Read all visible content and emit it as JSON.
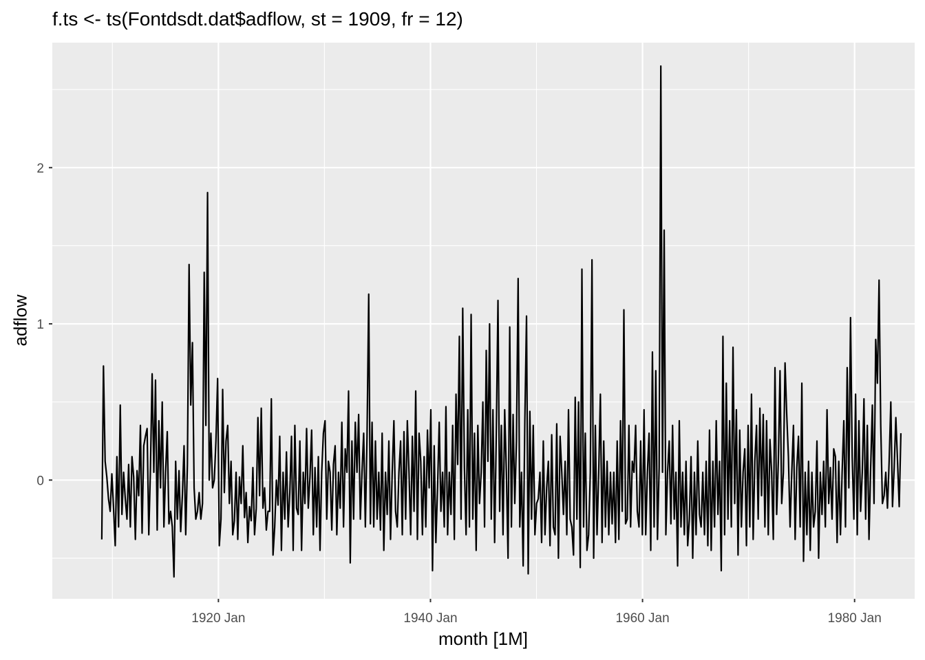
{
  "chart_data": {
    "type": "line",
    "title": "f.ts <- ts(Fontdsdt.dat$adflow, st = 1909, fr = 12)",
    "xlabel": "month [1M]",
    "ylabel": "adflow",
    "x_start": "1909-01",
    "frequency": 12,
    "x_range": [
      "1904-05",
      "1985-09"
    ],
    "ylim": [
      -0.76,
      2.8
    ],
    "x_ticks": [
      {
        "date": "1920-01",
        "label": "1920 Jan"
      },
      {
        "date": "1940-01",
        "label": "1940 Jan"
      },
      {
        "date": "1960-01",
        "label": "1960 Jan"
      },
      {
        "date": "1980-01",
        "label": "1980 Jan"
      }
    ],
    "y_ticks": [
      {
        "value": 0,
        "label": "0"
      },
      {
        "value": 1,
        "label": "1"
      },
      {
        "value": 2,
        "label": "2"
      }
    ],
    "grid": true,
    "background": "#EBEBEB",
    "grid_color": "#FFFFFF",
    "line_color": "#000000",
    "series": [
      {
        "values": [
          -0.38,
          0.73,
          0.12,
          0.02,
          -0.12,
          -0.2,
          0.04,
          -0.18,
          -0.42,
          0.15,
          -0.3,
          0.48,
          -0.22,
          0.05,
          -0.12,
          -0.25,
          0.1,
          -0.3,
          0.15,
          0.02,
          -0.38,
          0.06,
          -0.1,
          0.35,
          -0.34,
          0.22,
          0.28,
          0.33,
          -0.35,
          0.08,
          0.68,
          0.05,
          0.64,
          -0.32,
          0.38,
          -0.05,
          0.5,
          -0.3,
          0.05,
          0.31,
          -0.28,
          -0.2,
          -0.3,
          -0.62,
          0.12,
          -0.25,
          0.06,
          -0.33,
          -0.1,
          0.22,
          -0.35,
          0.1,
          1.38,
          0.48,
          0.88,
          -0.05,
          -0.25,
          -0.2,
          -0.08,
          -0.25,
          -0.15,
          1.33,
          0.35,
          1.84,
          0.0,
          0.3,
          -0.05,
          0.0,
          0.25,
          0.65,
          -0.42,
          -0.25,
          0.58,
          -0.08,
          0.25,
          0.35,
          -0.15,
          0.12,
          -0.35,
          -0.26,
          0.05,
          -0.38,
          0.02,
          -0.15,
          0.22,
          -0.24,
          -0.08,
          -0.4,
          -0.17,
          -0.26,
          0.08,
          -0.35,
          -0.18,
          0.4,
          -0.1,
          0.46,
          -0.18,
          -0.05,
          -0.32,
          -0.2,
          -0.2,
          0.52,
          -0.48,
          -0.3,
          0.0,
          -0.16,
          0.28,
          -0.45,
          0.05,
          -0.25,
          0.18,
          -0.3,
          -0.08,
          0.28,
          -0.45,
          0.35,
          -0.18,
          -0.22,
          0.25,
          -0.45,
          0.05,
          -0.15,
          0.33,
          -0.18,
          0.02,
          0.32,
          -0.35,
          0.08,
          -0.3,
          0.15,
          -0.45,
          0.05,
          0.3,
          0.38,
          -0.25,
          0.12,
          0.05,
          -0.32,
          0.1,
          0.22,
          -0.35,
          0.05,
          -0.18,
          0.37,
          -0.3,
          0.2,
          0.05,
          0.57,
          -0.53,
          0.25,
          -0.25,
          0.37,
          0.05,
          0.42,
          -0.25,
          0.05,
          0.3,
          -0.3,
          0.28,
          1.19,
          -0.28,
          0.37,
          -0.3,
          0.25,
          -0.25,
          0.05,
          -0.32,
          0.3,
          -0.45,
          0.05,
          -0.22,
          0.25,
          -0.38,
          0.05,
          0.38,
          -0.2,
          -0.3,
          0.05,
          0.25,
          -0.35,
          0.31,
          -0.25,
          0.38,
          0.05,
          -0.35,
          0.28,
          -0.2,
          0.57,
          -0.38,
          0.3,
          0.12,
          -0.35,
          0.15,
          -0.3,
          0.32,
          -0.05,
          0.45,
          -0.58,
          0.22,
          -0.4,
          -0.05,
          0.37,
          -0.2,
          0.05,
          -0.3,
          0.47,
          -0.35,
          0.05,
          -0.22,
          0.35,
          -0.38,
          0.55,
          0.1,
          0.92,
          -0.25,
          1.1,
          0.08,
          -0.35,
          0.45,
          -0.3,
          1.06,
          -0.25,
          0.3,
          -0.45,
          0.35,
          -0.15,
          0.05,
          0.5,
          -0.3,
          0.83,
          0.12,
          1.0,
          -0.25,
          0.45,
          -0.4,
          0.3,
          1.15,
          -0.2,
          0.35,
          -0.35,
          0.45,
          0.05,
          -0.5,
          0.98,
          -0.3,
          0.42,
          -0.15,
          0.25,
          1.29,
          -0.3,
          0.05,
          -0.55,
          0.38,
          1.05,
          -0.6,
          0.44,
          -0.25,
          0.35,
          -0.35,
          -0.15,
          -0.12,
          0.05,
          -0.4,
          0.25,
          -0.35,
          -0.05,
          0.12,
          -0.42,
          0.29,
          -0.3,
          -0.35,
          0.36,
          -0.5,
          0.28,
          0.05,
          -0.22,
          0.12,
          -0.35,
          0.45,
          -0.25,
          -0.3,
          -0.48,
          0.53,
          -0.25,
          0.5,
          -0.56,
          1.35,
          -0.3,
          0.3,
          -0.45,
          -0.35,
          0.05,
          1.41,
          -0.5,
          0.35,
          -0.35,
          0.05,
          0.55,
          -0.4,
          0.25,
          -0.3,
          0.12,
          -0.35,
          0.05,
          -0.28,
          0.05,
          -0.4,
          0.25,
          -0.38,
          0.38,
          -0.2,
          1.09,
          -0.28,
          -0.25,
          0.35,
          -0.3,
          0.12,
          0.05,
          0.35,
          -0.2,
          -0.3,
          0.25,
          -0.35,
          0.45,
          -0.35,
          0.05,
          0.3,
          -0.45,
          0.82,
          -0.3,
          0.7,
          -0.38,
          0.08,
          2.65,
          0.05,
          1.6,
          -0.35,
          0.05,
          0.25,
          -0.28,
          0.35,
          -0.25,
          0.05,
          -0.55,
          0.38,
          -0.3,
          0.05,
          -0.35,
          0.12,
          -0.42,
          -0.25,
          0.15,
          -0.5,
          0.05,
          -0.35,
          0.25,
          -0.22,
          -0.3,
          0.05,
          -0.35,
          0.12,
          -0.42,
          0.32,
          -0.45,
          0.12,
          -0.3,
          0.38,
          -0.22,
          0.12,
          -0.58,
          0.92,
          -0.35,
          0.62,
          -0.25,
          0.38,
          -0.3,
          0.85,
          -0.15,
          0.45,
          -0.48,
          0.32,
          -0.3,
          0.05,
          0.2,
          -0.42,
          0.35,
          -0.3,
          0.55,
          -0.38,
          0.12,
          0.35,
          -0.25,
          0.46,
          -0.1,
          0.42,
          -0.3,
          0.38,
          -0.35,
          0.26,
          0.05,
          -0.38,
          0.72,
          -0.22,
          0.12,
          0.7,
          -0.15,
          0.05,
          0.75,
          0.42,
          0.15,
          -0.3,
          0.05,
          0.35,
          -0.38,
          0.08,
          0.28,
          -0.3,
          0.62,
          -0.52,
          0.05,
          -0.35,
          0.12,
          -0.45,
          0.05,
          -0.3,
          -0.2,
          0.25,
          -0.5,
          0.05,
          -0.22,
          0.12,
          -0.3,
          0.45,
          -0.15,
          0.08,
          -0.25,
          0.2,
          0.15,
          -0.4,
          0.12,
          -0.35,
          0.05,
          0.38,
          -0.3,
          0.72,
          -0.05,
          1.04,
          0.15,
          -0.25,
          0.55,
          -0.35,
          0.38,
          -0.2,
          0.05,
          0.52,
          -0.25,
          0.35,
          -0.38,
          0.08,
          0.48,
          -0.15,
          0.9,
          0.62,
          1.28,
          0.35,
          -0.15,
          -0.1,
          0.05,
          -0.18,
          0.12,
          0.5,
          -0.17,
          0.08,
          0.4,
          0.12,
          -0.17,
          0.3
        ]
      }
    ]
  }
}
